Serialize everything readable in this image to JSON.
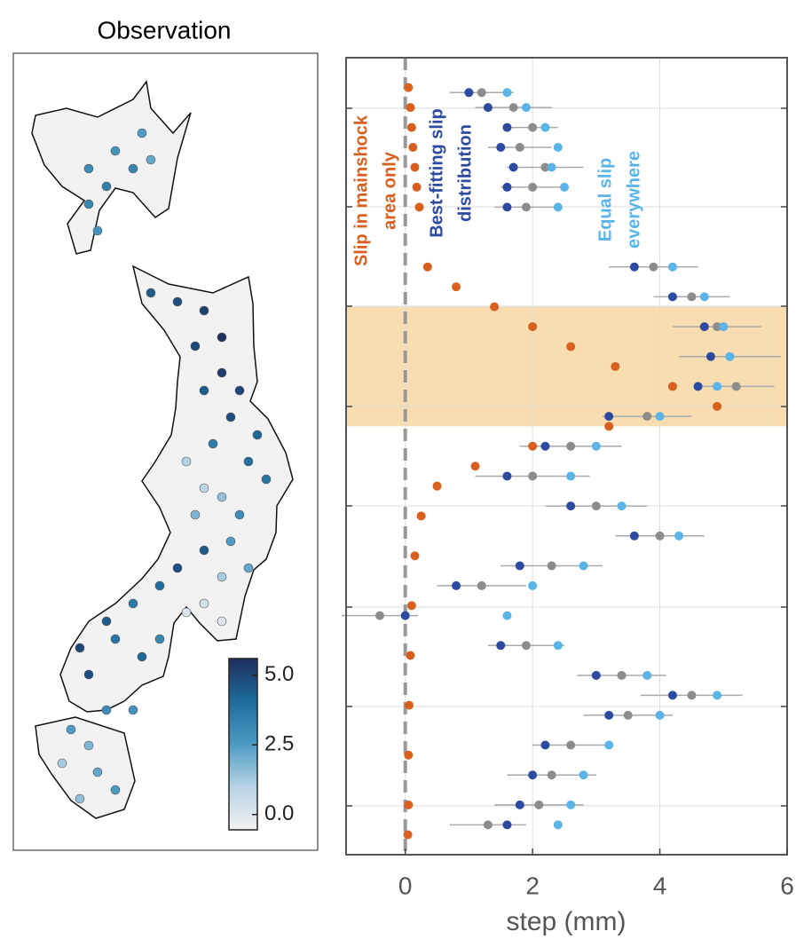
{
  "map": {
    "title": "Observation",
    "stations": [
      3,
      2.8,
      2.5,
      3.2,
      3.5,
      3.2,
      2.8,
      2.2,
      4.5,
      4.8,
      5.2,
      5.5,
      5.0,
      5.3,
      5.0,
      4.5,
      4.8,
      4.2,
      3.5,
      4.0,
      3.8,
      1.0,
      0.8,
      1.5,
      1.8,
      3.0,
      2.5,
      4.5,
      4.8,
      1.2,
      0.3,
      0.1,
      0.0,
      2.2,
      4.0,
      3.6,
      4.5,
      5.0,
      3.8,
      4.2,
      4.8,
      3.2,
      3.0,
      2.8,
      2.5,
      1.8,
      1.2,
      2.2,
      2.6,
      1.5
    ],
    "colormap": [
      "#f2f2f2",
      "#b7d3e4",
      "#4c9bc4",
      "#1f6c9c",
      "#1f2f5f"
    ],
    "clim": [
      -0.55,
      5.6
    ],
    "colorbar_ticks": [
      {
        "value": 0,
        "label": "0.0"
      },
      {
        "value": 2.5,
        "label": "2.5"
      },
      {
        "value": 5,
        "label": "5.0"
      }
    ]
  },
  "chart_data": {
    "type": "scatter",
    "x_label": "step (mm)",
    "xlim": [
      -0.93,
      6
    ],
    "xticks": [
      0,
      2,
      4,
      6
    ],
    "ylim": [
      8,
      0
    ],
    "grid": true,
    "zero_line": true,
    "highlight_band": [
      2.5,
      3.7
    ],
    "highlight_color": "#f8ddb0",
    "series": [
      {
        "color": "#8c8c8c",
        "y": [
          0.35,
          0.5,
          0.7,
          0.9,
          1.1,
          1.3,
          1.5,
          2.1,
          2.4,
          2.7,
          3.0,
          3.3,
          3.6,
          3.9,
          4.2,
          4.5,
          4.8,
          5.1,
          5.3,
          5.6,
          5.9,
          6.2,
          6.4,
          6.6,
          6.9,
          7.2,
          7.5,
          7.7
        ],
        "x": [
          1.2,
          1.7,
          2.0,
          1.8,
          2.2,
          2.0,
          1.9,
          3.9,
          4.5,
          4.9,
          5.1,
          5.2,
          3.8,
          2.6,
          2.0,
          3.0,
          4.0,
          2.3,
          1.2,
          -0.4,
          1.9,
          3.4,
          4.5,
          3.5,
          2.6,
          2.3,
          2.1,
          1.3
        ],
        "errors": [
          0.5,
          0.6,
          0.4,
          0.5,
          0.6,
          0.5,
          0.5,
          0.7,
          0.6,
          0.7,
          0.8,
          0.6,
          0.7,
          0.8,
          0.9,
          0.8,
          0.7,
          0.8,
          0.7,
          0.6,
          0.6,
          0.7,
          0.8,
          0.7,
          0.6,
          0.7,
          0.7,
          0.6
        ]
      },
      {
        "color": "#d95f1e",
        "label_lines": [
          "Slip in mainshock",
          "area only"
        ],
        "y": [
          0.3,
          0.5,
          0.7,
          0.9,
          1.1,
          1.3,
          1.5,
          2.1,
          2.3,
          2.5,
          2.7,
          2.9,
          3.1,
          3.3,
          3.5,
          3.7,
          3.9,
          4.1,
          4.3,
          4.6,
          5.0,
          5.5,
          6.0,
          6.5,
          7.0,
          7.5,
          7.8
        ],
        "x": [
          0.05,
          0.08,
          0.1,
          0.12,
          0.15,
          0.18,
          0.22,
          0.35,
          0.8,
          1.4,
          2.0,
          2.6,
          3.3,
          4.2,
          4.9,
          3.2,
          2.0,
          1.1,
          0.5,
          0.25,
          0.15,
          0.1,
          0.08,
          0.06,
          0.05,
          0.05,
          0.04
        ]
      },
      {
        "color": "#5ab4e8",
        "label_lines": [
          "Equal slip",
          "everywhere"
        ],
        "y": [
          0.35,
          0.5,
          0.7,
          0.9,
          1.1,
          1.3,
          1.5,
          2.1,
          2.4,
          2.7,
          3.0,
          3.3,
          3.6,
          3.9,
          4.2,
          4.5,
          4.8,
          5.1,
          5.3,
          5.6,
          5.9,
          6.2,
          6.4,
          6.6,
          6.9,
          7.2,
          7.5,
          7.7
        ],
        "x": [
          1.6,
          1.9,
          2.2,
          2.4,
          2.3,
          2.5,
          2.4,
          4.2,
          4.7,
          5.0,
          5.1,
          4.9,
          4.0,
          3.0,
          2.6,
          3.4,
          4.3,
          2.8,
          2.0,
          1.6,
          2.4,
          3.8,
          4.9,
          4.0,
          3.2,
          2.8,
          2.6,
          2.4
        ]
      },
      {
        "color": "#2e4aa0",
        "label_lines": [
          "Best-fitting slip",
          "distribution"
        ],
        "y": [
          0.35,
          0.5,
          0.7,
          0.9,
          1.1,
          1.3,
          1.5,
          2.1,
          2.4,
          2.7,
          3.0,
          3.3,
          3.6,
          3.9,
          4.2,
          4.5,
          4.8,
          5.1,
          5.3,
          5.6,
          5.9,
          6.2,
          6.4,
          6.6,
          6.9,
          7.2,
          7.5,
          7.7
        ],
        "x": [
          1.0,
          1.3,
          1.6,
          1.5,
          1.7,
          1.6,
          1.6,
          3.6,
          4.2,
          4.7,
          4.8,
          4.6,
          3.2,
          2.2,
          1.6,
          2.6,
          3.6,
          1.8,
          0.8,
          0.0,
          1.5,
          3.0,
          4.2,
          3.2,
          2.2,
          2.0,
          1.8,
          1.6
        ]
      }
    ]
  }
}
